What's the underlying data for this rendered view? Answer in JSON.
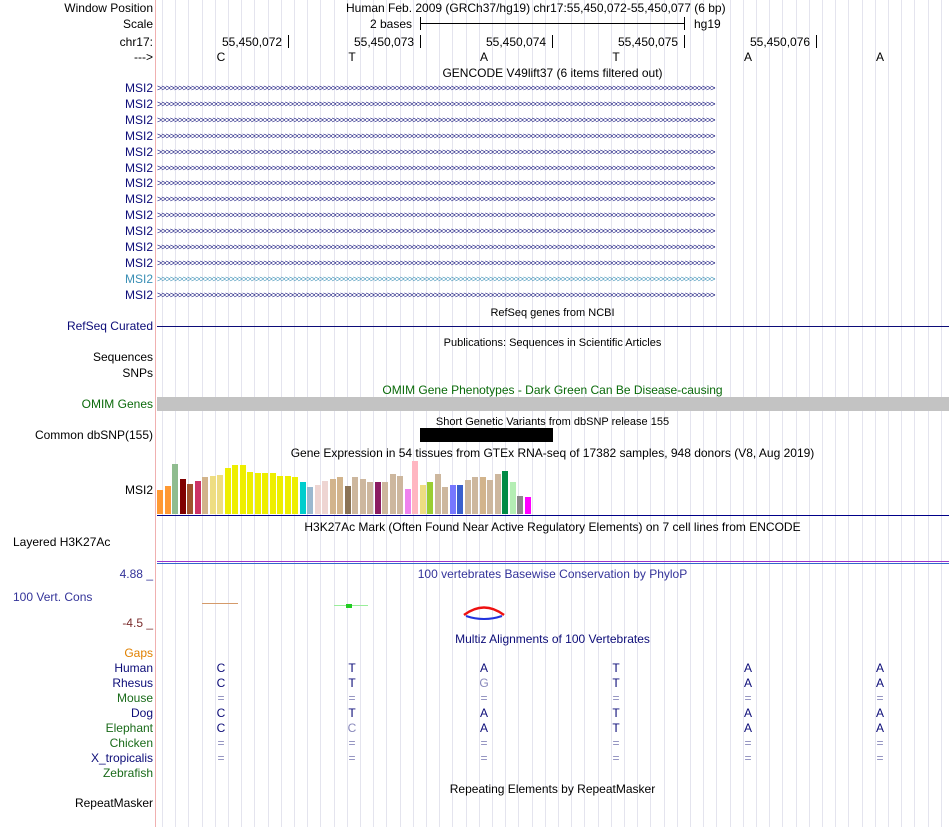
{
  "header": {
    "window_position_label": "Window Position",
    "assembly_text": "Human Feb. 2009 (GRCh37/hg19)   chr17:55,450,072-55,450,077 (6 bp)",
    "scale_label": "Scale",
    "scale_value": "2 bases",
    "scale_db": "hg19",
    "chrom_label": "chr17:",
    "strand_label": "--->",
    "positions": [
      "55,450,072",
      "55,450,073",
      "55,450,074",
      "55,450,075",
      "55,450,076"
    ],
    "bases": [
      "C",
      "T",
      "A",
      "T",
      "A",
      "A"
    ]
  },
  "gencode": {
    "title": "GENCODE V49lift37 (6 items filtered out)",
    "items": [
      "MSI2",
      "MSI2",
      "MSI2",
      "MSI2",
      "MSI2",
      "MSI2",
      "MSI2",
      "MSI2",
      "MSI2",
      "MSI2",
      "MSI2",
      "MSI2",
      "MSI2",
      "MSI2"
    ],
    "arrow_text": ">>>>>>>>>>>>>>>>>>>>>>>>>>>>>>>>>>>>>>>>>>>>>>>>>>>>>>>>>>>>>>>>>>>>>>>>>>>>>>>>>>>>>>>>>>>>>>>>>>>>>>>>>>>>>>>>>>>>>>>>>>>>>>>>>>>",
    "color": "#0c0c78",
    "highlight_color": "#3a8fb5"
  },
  "refseq": {
    "title": "RefSeq genes from NCBI",
    "label": "RefSeq Curated"
  },
  "publications": {
    "title": "Publications: Sequences in Scientific Articles",
    "labels": [
      "Sequences",
      "SNPs"
    ]
  },
  "omim": {
    "title": "OMIM Gene Phenotypes - Dark Green Can Be Disease-causing",
    "label": "OMIM Genes",
    "color": "#0a6a0a"
  },
  "dbsnp": {
    "title": "Short Genetic Variants from dbSNP release 155",
    "label": "Common dbSNP(155)"
  },
  "gtex": {
    "title": "Gene Expression in 54 tissues from GTEx RNA-seq of 17382 samples, 948 donors (V8, Aug 2019)",
    "label": "MSI2",
    "bars": [
      {
        "color": "#ff9933",
        "value": 0.46
      },
      {
        "color": "#ff9933",
        "value": 0.52
      },
      {
        "color": "#8fbc8f",
        "value": 0.94
      },
      {
        "color": "#800000",
        "value": 0.66
      },
      {
        "color": "#a0522d",
        "value": 0.56
      },
      {
        "color": "#cc3366",
        "value": 0.62
      },
      {
        "color": "#d2b48c",
        "value": 0.7
      },
      {
        "color": "#eedd82",
        "value": 0.72
      },
      {
        "color": "#eedd82",
        "value": 0.74
      },
      {
        "color": "#eeee00",
        "value": 0.86
      },
      {
        "color": "#eeee00",
        "value": 0.92
      },
      {
        "color": "#eeee00",
        "value": 0.92
      },
      {
        "color": "#eeee00",
        "value": 0.8
      },
      {
        "color": "#eeee00",
        "value": 0.78
      },
      {
        "color": "#eeee00",
        "value": 0.78
      },
      {
        "color": "#eeee00",
        "value": 0.78
      },
      {
        "color": "#eeee00",
        "value": 0.72
      },
      {
        "color": "#eeee00",
        "value": 0.72
      },
      {
        "color": "#eeee00",
        "value": 0.7
      },
      {
        "color": "#00cdcd",
        "value": 0.6
      },
      {
        "color": "#9ab8cf",
        "value": 0.5
      },
      {
        "color": "#eed5d2",
        "value": 0.54
      },
      {
        "color": "#eed5d2",
        "value": 0.62
      },
      {
        "color": "#d2b48c",
        "value": 0.66
      },
      {
        "color": "#d2b48c",
        "value": 0.7
      },
      {
        "color": "#8b7355",
        "value": 0.52
      },
      {
        "color": "#cdb79e",
        "value": 0.7
      },
      {
        "color": "#cdb79e",
        "value": 0.66
      },
      {
        "color": "#cdb79e",
        "value": 0.6
      },
      {
        "color": "#8b1c62",
        "value": 0.6
      },
      {
        "color": "#cdb79e",
        "value": 0.6
      },
      {
        "color": "#cdb79e",
        "value": 0.76
      },
      {
        "color": "#cdb79e",
        "value": 0.72
      },
      {
        "color": "#ee82ee",
        "value": 0.48
      },
      {
        "color": "#ffb6c1",
        "value": 1.0
      },
      {
        "color": "#eedd82",
        "value": 0.54
      },
      {
        "color": "#9acd32",
        "value": 0.6
      },
      {
        "color": "#cdb79e",
        "value": 0.76
      },
      {
        "color": "#cdb79e",
        "value": 0.5
      },
      {
        "color": "#7777ff",
        "value": 0.54
      },
      {
        "color": "#3a5fcd",
        "value": 0.54
      },
      {
        "color": "#cdb79e",
        "value": 0.64
      },
      {
        "color": "#cdb79e",
        "value": 0.7
      },
      {
        "color": "#d2b48c",
        "value": 0.7
      },
      {
        "color": "#cdb79e",
        "value": 0.64
      },
      {
        "color": "#cdb79e",
        "value": 0.76
      },
      {
        "color": "#008b45",
        "value": 0.82
      },
      {
        "color": "#b4eeb4",
        "value": 0.6
      },
      {
        "color": "#8b8989",
        "value": 0.34
      },
      {
        "color": "#ff00ff",
        "value": 0.32
      }
    ]
  },
  "h3k27ac": {
    "title": "H3K27Ac Mark (Often Found Near Active Regulatory Elements) on 7 cell lines from ENCODE",
    "label": "Layered H3K27Ac"
  },
  "phylop": {
    "title": "100 vertebrates Basewise Conservation by PhyloP",
    "max": "4.88 _",
    "min": "-4.5 _",
    "label": "100 Vert. Cons",
    "color": "#333399"
  },
  "multiz": {
    "title": "Multiz Alignments of 100 Vertebrates",
    "gaps_label": "Gaps",
    "gaps_color": "#e08000",
    "species": [
      {
        "name": "Human",
        "color": "#0c0c78",
        "bases": [
          "C",
          "T",
          "A",
          "T",
          "A",
          "A"
        ]
      },
      {
        "name": "Rhesus",
        "color": "#0c0c78",
        "bases": [
          "C",
          "T",
          "G",
          "T",
          "A",
          "A"
        ]
      },
      {
        "name": "Mouse",
        "color": "#1a6b1a",
        "bases": [
          "=",
          "=",
          "=",
          "=",
          "=",
          "="
        ]
      },
      {
        "name": "Dog",
        "color": "#0c0c78",
        "bases": [
          "C",
          "T",
          "A",
          "T",
          "A",
          "A"
        ]
      },
      {
        "name": "Elephant",
        "color": "#1a6b1a",
        "bases": [
          "C",
          "C",
          "A",
          "T",
          "A",
          "A"
        ]
      },
      {
        "name": "Chicken",
        "color": "#1a6b1a",
        "bases": [
          "=",
          "=",
          "=",
          "=",
          "=",
          "="
        ]
      },
      {
        "name": "X_tropicalis",
        "color": "#0c0c78",
        "bases": [
          "=",
          "=",
          "=",
          "=",
          "=",
          "="
        ]
      },
      {
        "name": "Zebrafish",
        "color": "#1a6b1a",
        "bases": [
          "",
          "",
          "",
          "",
          "",
          ""
        ]
      }
    ]
  },
  "repeatmasker": {
    "title": "Repeating Elements by RepeatMasker",
    "label": "RepeatMasker"
  }
}
